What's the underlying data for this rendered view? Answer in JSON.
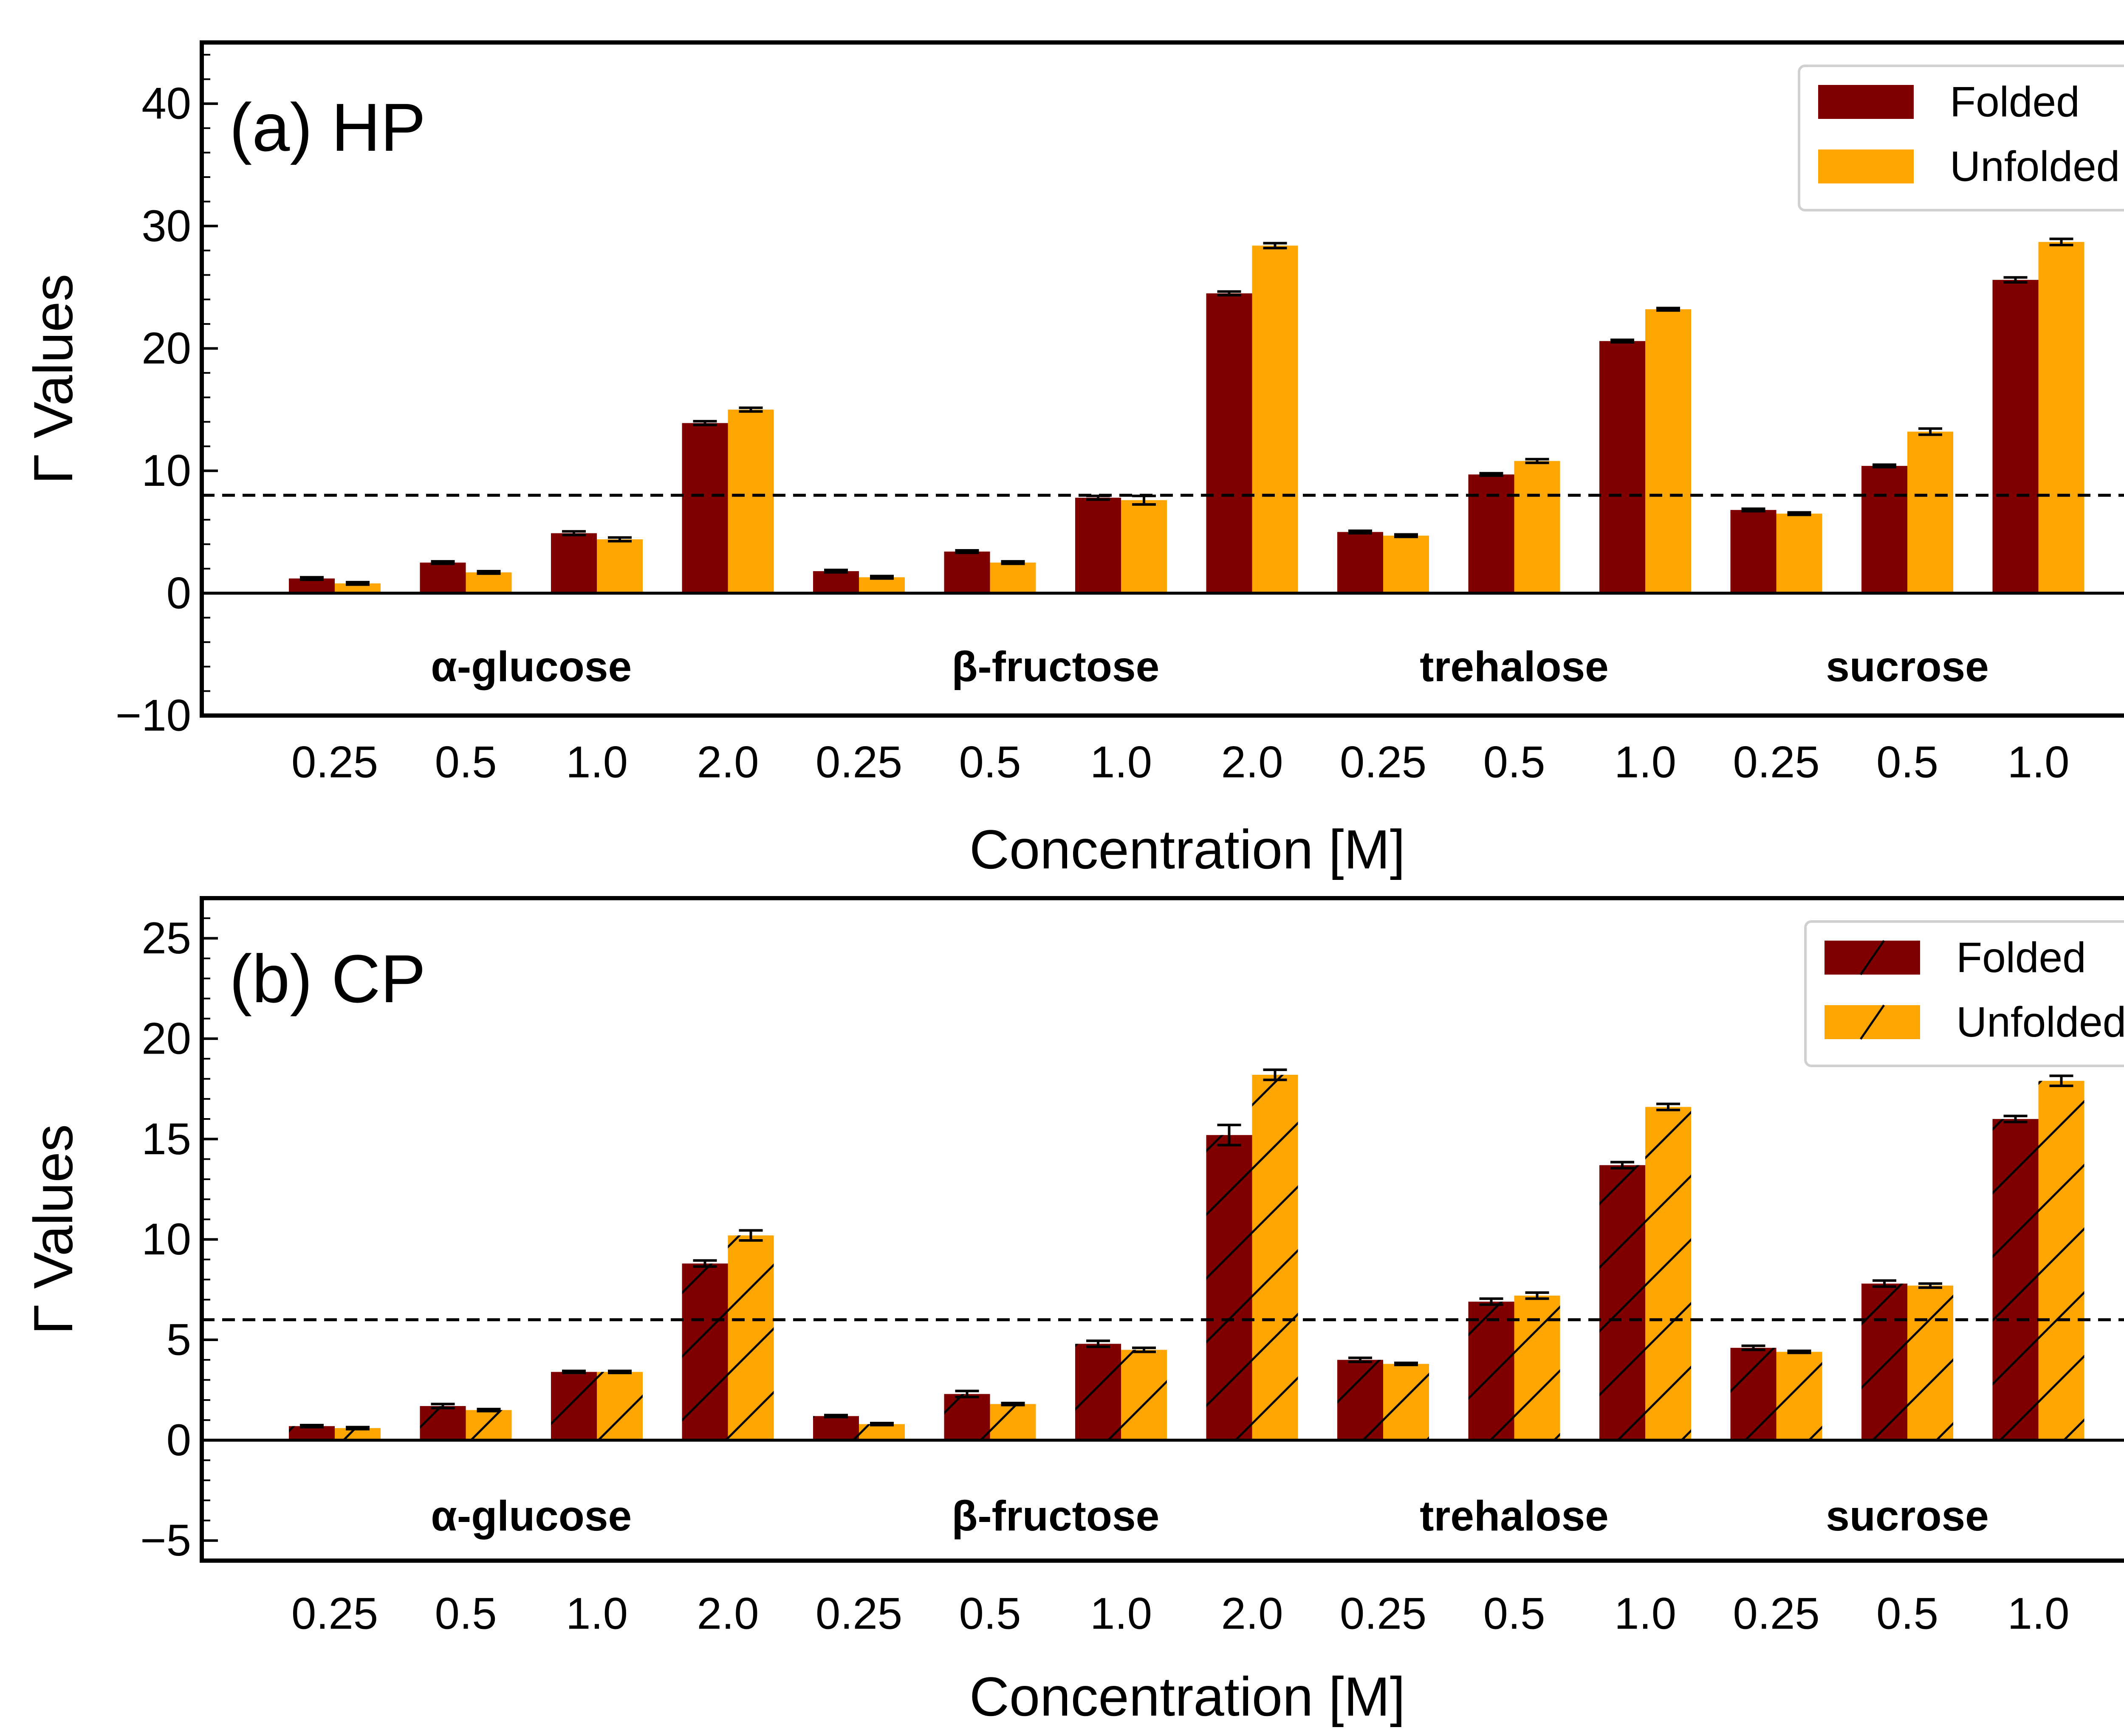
{
  "chart_data": [
    {
      "type": "bar",
      "panel_label": "(a) HP",
      "xlabel": "Concentration [M]",
      "ylabel": "Γ Values",
      "ylim": [
        -10,
        45
      ],
      "yticks": [
        -10,
        0,
        10,
        20,
        30,
        40
      ],
      "ytick_labels": [
        "−10",
        "0",
        "10",
        "20",
        "30",
        "40"
      ],
      "minor_ytick_step": 2,
      "reference_line_y": 8,
      "hatched": false,
      "categories": [
        "0.25",
        "0.5",
        "1.0",
        "2.0",
        "0.25",
        "0.5",
        "1.0",
        "2.0",
        "0.25",
        "0.5",
        "1.0",
        "0.25",
        "0.5",
        "1.0"
      ],
      "groups": [
        {
          "name": "α-glucose",
          "start": 0,
          "end": 3
        },
        {
          "name": "β-fructose",
          "start": 4,
          "end": 7
        },
        {
          "name": "trehalose",
          "start": 8,
          "end": 10
        },
        {
          "name": "sucrose",
          "start": 11,
          "end": 13
        }
      ],
      "series": [
        {
          "name": "Folded",
          "color": "#800000",
          "values": [
            1.2,
            2.5,
            4.9,
            13.9,
            1.8,
            3.4,
            7.8,
            24.5,
            5.0,
            9.7,
            20.6,
            6.8,
            10.4,
            25.6
          ],
          "errors": [
            0.1,
            0.1,
            0.15,
            0.15,
            0.1,
            0.1,
            0.15,
            0.15,
            0.1,
            0.1,
            0.1,
            0.1,
            0.1,
            0.2
          ]
        },
        {
          "name": "Unfolded",
          "color": "#FFA500",
          "values": [
            0.8,
            1.7,
            4.4,
            15.0,
            1.3,
            2.5,
            7.6,
            28.4,
            4.7,
            10.8,
            23.2,
            6.5,
            13.2,
            28.7
          ],
          "errors": [
            0.1,
            0.1,
            0.15,
            0.15,
            0.1,
            0.1,
            0.35,
            0.2,
            0.1,
            0.15,
            0.1,
            0.1,
            0.25,
            0.25
          ]
        }
      ],
      "legend_position": "top-right"
    },
    {
      "type": "bar",
      "panel_label": "(b) CP",
      "xlabel": "Concentration [M]",
      "ylabel": "Γ Values",
      "ylim": [
        -6,
        27
      ],
      "yticks": [
        -5,
        0,
        5,
        10,
        15,
        20,
        25
      ],
      "ytick_labels": [
        "−5",
        "0",
        "5",
        "10",
        "15",
        "20",
        "25"
      ],
      "minor_ytick_step": 1,
      "reference_line_y": 6,
      "hatched": true,
      "categories": [
        "0.25",
        "0.5",
        "1.0",
        "2.0",
        "0.25",
        "0.5",
        "1.0",
        "2.0",
        "0.25",
        "0.5",
        "1.0",
        "0.25",
        "0.5",
        "1.0"
      ],
      "groups": [
        {
          "name": "α-glucose",
          "start": 0,
          "end": 3
        },
        {
          "name": "β-fructose",
          "start": 4,
          "end": 7
        },
        {
          "name": "trehalose",
          "start": 8,
          "end": 10
        },
        {
          "name": "sucrose",
          "start": 11,
          "end": 13
        }
      ],
      "series": [
        {
          "name": "Folded",
          "color": "#800000",
          "values": [
            0.7,
            1.7,
            3.4,
            8.8,
            1.2,
            2.3,
            4.8,
            15.2,
            4.0,
            6.9,
            13.7,
            4.6,
            7.8,
            16.0
          ],
          "errors": [
            0.05,
            0.1,
            0.05,
            0.15,
            0.05,
            0.15,
            0.15,
            0.5,
            0.1,
            0.15,
            0.15,
            0.1,
            0.15,
            0.15
          ]
        },
        {
          "name": "Unfolded",
          "color": "#FFA500",
          "values": [
            0.6,
            1.5,
            3.4,
            10.2,
            0.8,
            1.8,
            4.5,
            18.2,
            3.8,
            7.2,
            16.6,
            4.4,
            7.7,
            17.9
          ],
          "errors": [
            0.05,
            0.05,
            0.05,
            0.25,
            0.05,
            0.05,
            0.1,
            0.25,
            0.05,
            0.15,
            0.15,
            0.05,
            0.1,
            0.25
          ]
        }
      ],
      "legend_position": "top-right"
    }
  ]
}
